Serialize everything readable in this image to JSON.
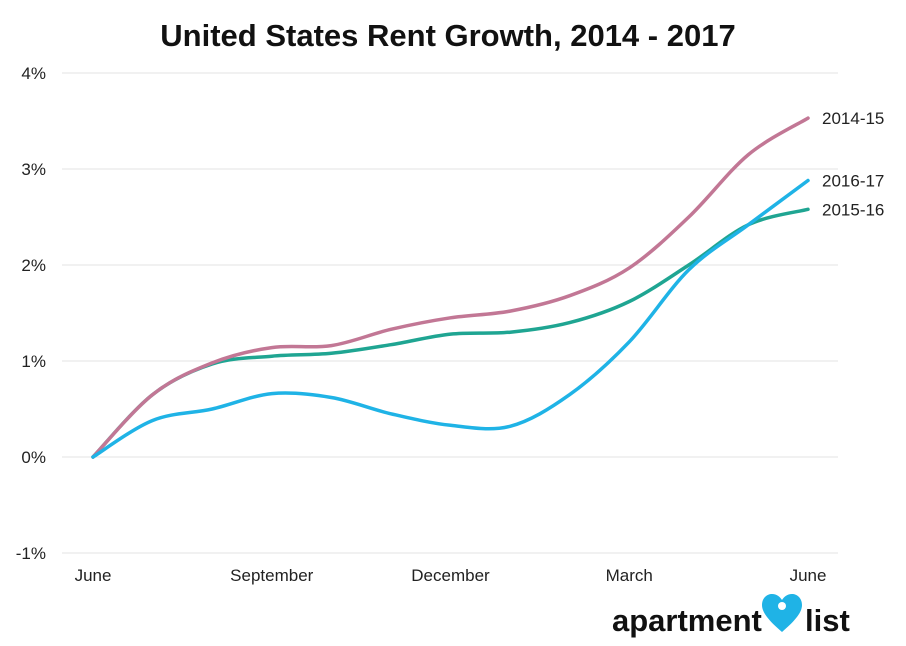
{
  "chart_data": {
    "type": "line",
    "title": "United States Rent Growth, 2014 - 2017",
    "xlabel": "",
    "ylabel": "",
    "x_range": [
      0,
      12
    ],
    "x_ticks": [
      {
        "x": 0,
        "label": "June"
      },
      {
        "x": 3,
        "label": "September"
      },
      {
        "x": 6,
        "label": "December"
      },
      {
        "x": 9,
        "label": "March"
      },
      {
        "x": 12,
        "label": "June"
      }
    ],
    "ylim": [
      -1,
      4
    ],
    "y_ticks": [
      {
        "value": 4,
        "label": "4%"
      },
      {
        "value": 3,
        "label": "3%"
      },
      {
        "value": 2,
        "label": "2%"
      },
      {
        "value": 1,
        "label": "1%"
      },
      {
        "value": 0,
        "label": "0%"
      },
      {
        "value": -1,
        "label": "-1%"
      }
    ],
    "grid": true,
    "series": [
      {
        "name": "2014-15",
        "color": "#c27795",
        "x": [
          0,
          1,
          2,
          3,
          4,
          5,
          6,
          7,
          8,
          9,
          10,
          11,
          12
        ],
        "values": [
          0,
          0.65,
          0.98,
          1.14,
          1.16,
          1.33,
          1.45,
          1.52,
          1.68,
          1.97,
          2.5,
          3.15,
          3.53
        ]
      },
      {
        "name": "2015-16",
        "color": "#1fa592",
        "x": [
          0,
          1,
          2,
          3,
          4,
          5,
          6,
          7,
          8,
          9,
          10,
          11,
          12
        ],
        "values": [
          0,
          0.65,
          0.97,
          1.05,
          1.08,
          1.17,
          1.28,
          1.3,
          1.4,
          1.62,
          2.0,
          2.42,
          2.58
        ]
      },
      {
        "name": "2016-17",
        "color": "#1fb3e6",
        "x": [
          0,
          1,
          2,
          3,
          4,
          5,
          6,
          7,
          8,
          9,
          10,
          11,
          12
        ],
        "values": [
          0,
          0.38,
          0.5,
          0.66,
          0.62,
          0.45,
          0.33,
          0.32,
          0.65,
          1.2,
          1.95,
          2.42,
          2.88
        ]
      }
    ]
  },
  "branding": {
    "logo_left": "apartment",
    "logo_right": "list",
    "logo_icon": "heart-pin-icon",
    "icon_color": "#1fb3e6"
  }
}
